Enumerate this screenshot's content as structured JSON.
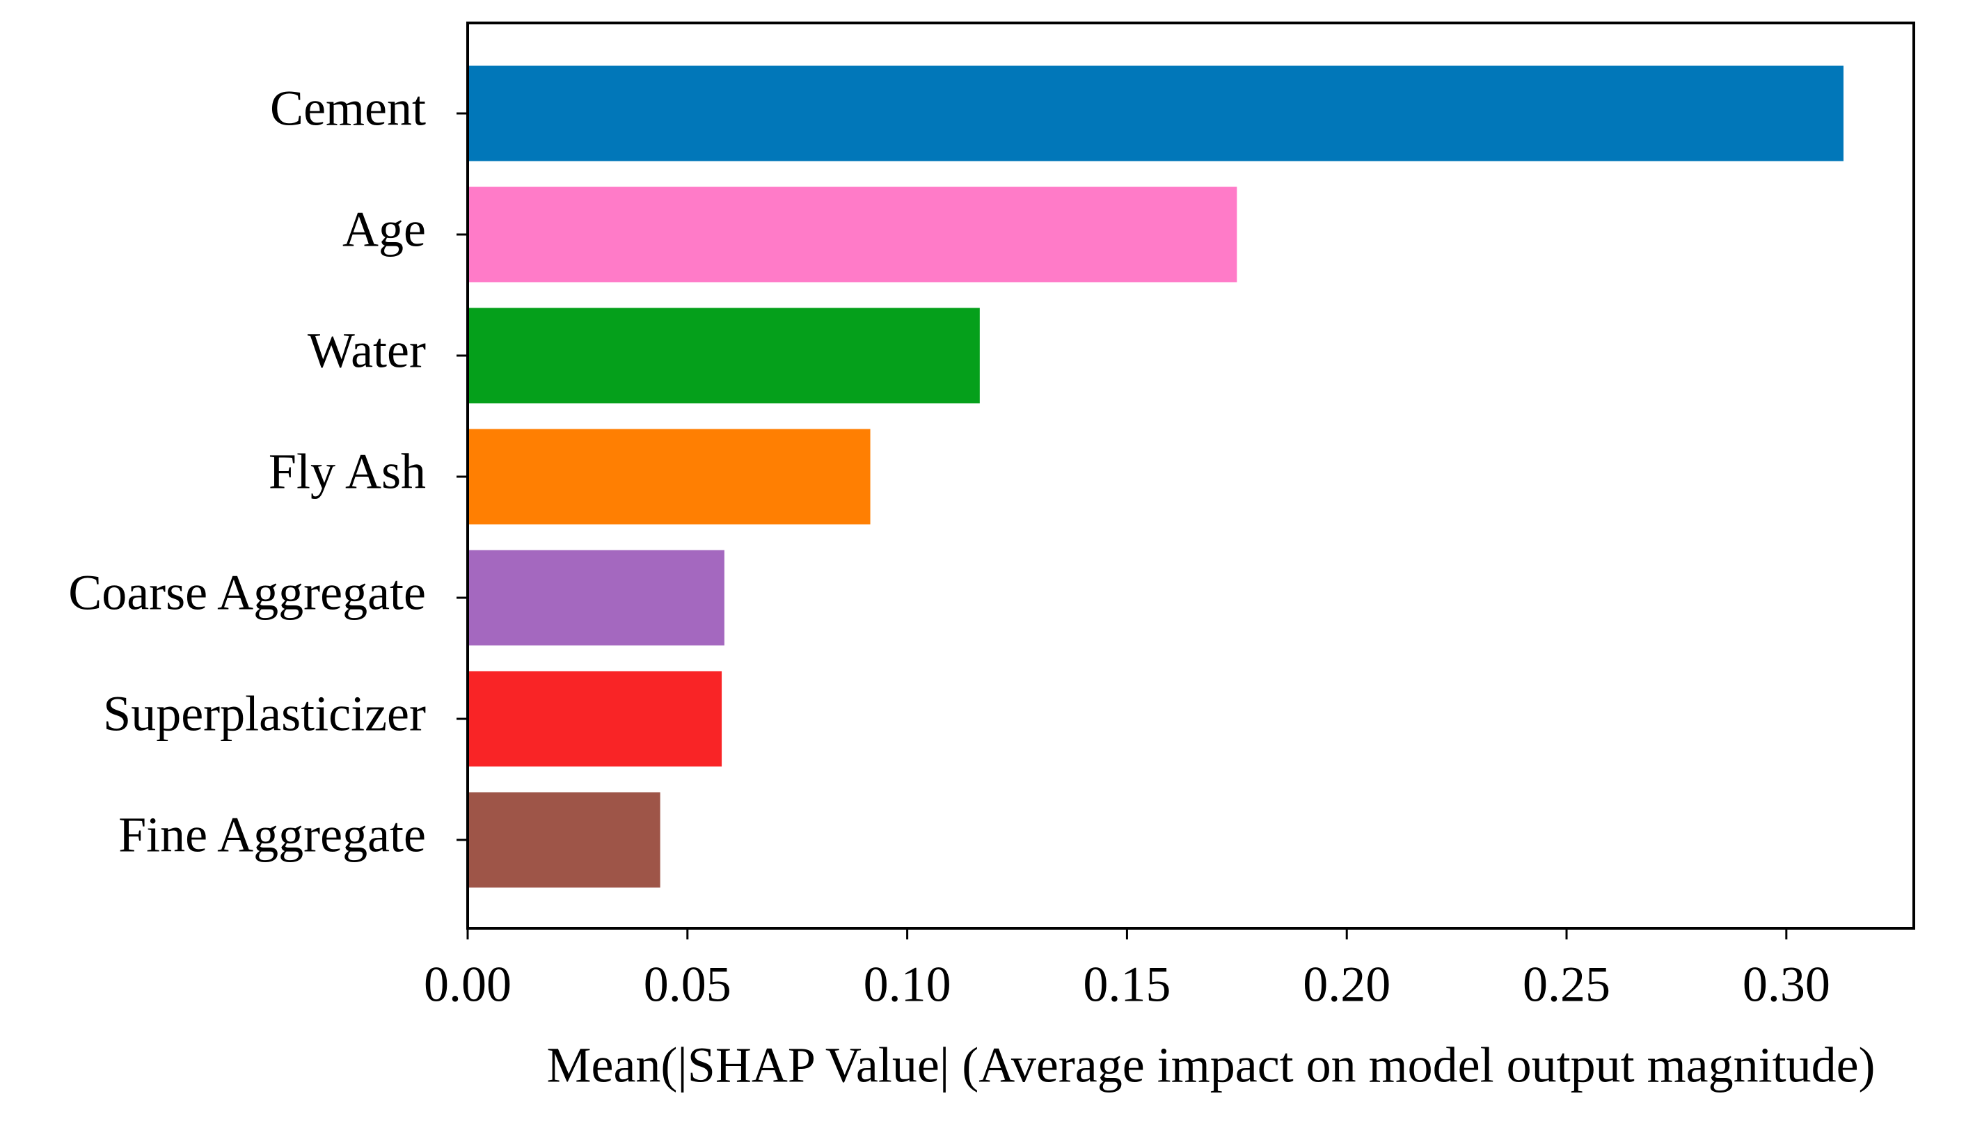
{
  "chart_data": {
    "type": "barh",
    "xlabel": "Mean(|SHAP Value| (Average impact on model output magnitude)",
    "categories": [
      "Cement",
      "Age",
      "Water",
      "Fly Ash",
      "Coarse Aggregate",
      "Superplasticizer",
      "Fine Aggregate"
    ],
    "values": [
      0.313,
      0.175,
      0.1165,
      0.0916,
      0.0584,
      0.0578,
      0.0438
    ],
    "colors": [
      "#0177b9",
      "#ff7bc8",
      "#05a01b",
      "#ff7f02",
      "#a468bf",
      "#f92426",
      "#9e5548"
    ],
    "xlim": [
      0,
      0.329
    ],
    "xticks": [
      {
        "value": 0,
        "label": "0.00"
      },
      {
        "value": 0.05,
        "label": "0.05"
      },
      {
        "value": 0.1,
        "label": "0.10"
      },
      {
        "value": 0.15,
        "label": "0.15"
      },
      {
        "value": 0.2,
        "label": "0.20"
      },
      {
        "value": 0.25,
        "label": "0.25"
      },
      {
        "value": 0.3,
        "label": "0.30"
      }
    ]
  }
}
